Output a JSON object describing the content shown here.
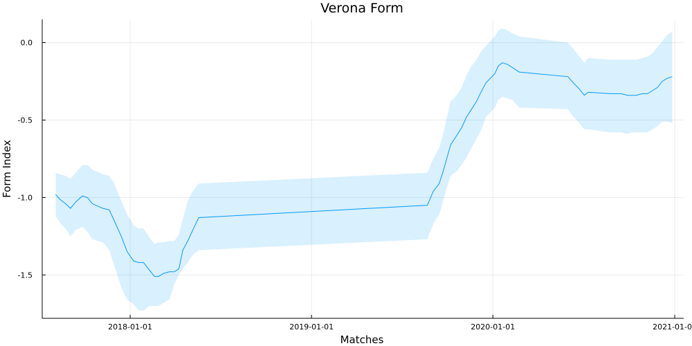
{
  "chart_data": {
    "type": "line",
    "title": "Verona Form",
    "xlabel": "Matches",
    "ylabel": "Form Index",
    "x_type": "date",
    "xlim": [
      "2017-07-08",
      "2021-01-19"
    ],
    "ylim": [
      -1.78,
      0.15
    ],
    "x_ticks": [
      "2018-01-01",
      "2019-01-01",
      "2020-01-01",
      "2021-01-01"
    ],
    "y_ticks": [
      0.0,
      -0.5,
      -1.0,
      -1.5
    ],
    "y_tick_labels": [
      "0.0",
      "-0.5",
      "-1.0",
      "-1.5"
    ],
    "grid": true,
    "legend": "none",
    "colors": {
      "line": "#009AFA",
      "band": "#009AFA",
      "band_opacity": 0.15
    },
    "series": [
      {
        "x": [
          "2017-08-04",
          "2017-08-12",
          "2017-08-24",
          "2017-09-03",
          "2017-09-13",
          "2017-09-27",
          "2017-10-07",
          "2017-10-17",
          "2017-11-07",
          "2017-11-20",
          "2017-11-30",
          "2017-12-14",
          "2017-12-26",
          "2018-01-08",
          "2018-01-18",
          "2018-01-28",
          "2018-02-09",
          "2018-02-19",
          "2018-02-27",
          "2018-03-09",
          "2018-03-21",
          "2018-03-31",
          "2018-04-09",
          "2018-04-17",
          "2018-04-27",
          "2018-05-07",
          "2018-05-19",
          "2019-08-22",
          "2019-09-03",
          "2019-09-15",
          "2019-09-23",
          "2019-09-30",
          "2019-10-08",
          "2019-10-20",
          "2019-10-30",
          "2019-11-09",
          "2019-11-19",
          "2019-11-29",
          "2019-12-08",
          "2019-12-18",
          "2020-01-05",
          "2020-01-12",
          "2020-01-20",
          "2020-01-30",
          "2020-02-09",
          "2020-02-23",
          "2020-05-31",
          "2020-06-11",
          "2020-06-23",
          "2020-07-03",
          "2020-07-11",
          "2020-08-25",
          "2020-09-04",
          "2020-09-15",
          "2020-09-28",
          "2020-10-05",
          "2020-10-15",
          "2020-10-28",
          "2020-11-07",
          "2020-11-17",
          "2020-11-27",
          "2020-12-07",
          "2020-12-17",
          "2020-12-27"
        ],
        "y": [
          -0.98,
          -1.01,
          -1.04,
          -1.07,
          -1.03,
          -0.99,
          -1.0,
          -1.04,
          -1.07,
          -1.08,
          -1.15,
          -1.25,
          -1.35,
          -1.41,
          -1.42,
          -1.42,
          -1.47,
          -1.51,
          -1.51,
          -1.49,
          -1.48,
          -1.48,
          -1.46,
          -1.34,
          -1.28,
          -1.21,
          -1.13,
          -1.05,
          -0.96,
          -0.91,
          -0.83,
          -0.75,
          -0.66,
          -0.6,
          -0.55,
          -0.48,
          -0.43,
          -0.38,
          -0.32,
          -0.26,
          -0.2,
          -0.15,
          -0.13,
          -0.14,
          -0.16,
          -0.19,
          -0.22,
          -0.26,
          -0.3,
          -0.34,
          -0.32,
          -0.33,
          -0.33,
          -0.33,
          -0.34,
          -0.34,
          -0.34,
          -0.33,
          -0.33,
          -0.31,
          -0.29,
          -0.25,
          -0.23,
          -0.22
        ],
        "lower": [
          -1.12,
          -1.16,
          -1.2,
          -1.25,
          -1.21,
          -1.19,
          -1.22,
          -1.27,
          -1.29,
          -1.34,
          -1.44,
          -1.58,
          -1.66,
          -1.69,
          -1.73,
          -1.73,
          -1.7,
          -1.7,
          -1.7,
          -1.68,
          -1.66,
          -1.56,
          -1.5,
          -1.46,
          -1.42,
          -1.37,
          -1.34,
          -1.27,
          -1.17,
          -1.11,
          -1.02,
          -0.94,
          -0.86,
          -0.83,
          -0.79,
          -0.74,
          -0.68,
          -0.62,
          -0.57,
          -0.48,
          -0.42,
          -0.37,
          -0.35,
          -0.36,
          -0.37,
          -0.42,
          -0.43,
          -0.48,
          -0.52,
          -0.56,
          -0.56,
          -0.58,
          -0.58,
          -0.58,
          -0.59,
          -0.58,
          -0.58,
          -0.58,
          -0.58,
          -0.56,
          -0.54,
          -0.51,
          -0.51,
          -0.52
        ],
        "upper": [
          -0.84,
          -0.85,
          -0.86,
          -0.88,
          -0.84,
          -0.79,
          -0.79,
          -0.82,
          -0.85,
          -0.86,
          -0.91,
          -1.02,
          -1.11,
          -1.18,
          -1.2,
          -1.2,
          -1.26,
          -1.3,
          -1.29,
          -1.29,
          -1.28,
          -1.28,
          -1.24,
          -1.14,
          -1.02,
          -0.96,
          -0.91,
          -0.84,
          -0.75,
          -0.68,
          -0.59,
          -0.49,
          -0.38,
          -0.34,
          -0.29,
          -0.21,
          -0.15,
          -0.11,
          -0.06,
          -0.02,
          0.04,
          0.08,
          0.09,
          0.08,
          0.06,
          0.04,
          0.0,
          -0.04,
          -0.09,
          -0.13,
          -0.1,
          -0.11,
          -0.11,
          -0.11,
          -0.11,
          -0.11,
          -0.11,
          -0.1,
          -0.09,
          -0.07,
          -0.03,
          0.01,
          0.05,
          0.07
        ]
      }
    ]
  }
}
